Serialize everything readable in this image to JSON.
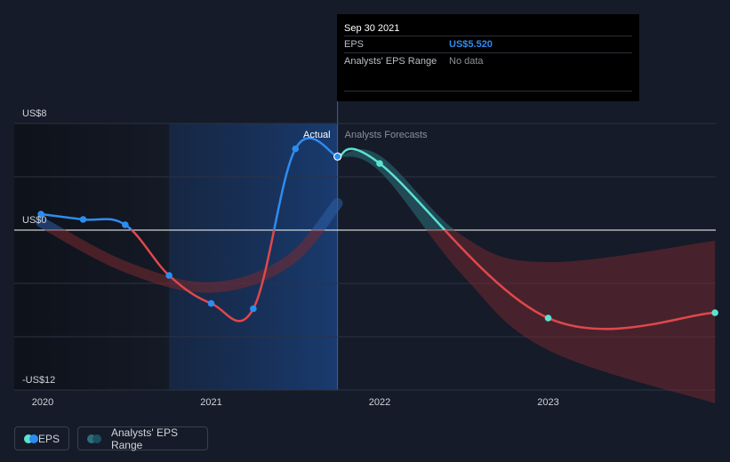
{
  "tooltip": {
    "date": "Sep 30 2021",
    "rows": [
      {
        "label": "EPS",
        "value": "US$5.520"
      },
      {
        "label": "Analysts' EPS Range",
        "value": "No data"
      }
    ]
  },
  "labels": {
    "actual": "Actual",
    "forecast": "Analysts Forecasts"
  },
  "legend": [
    {
      "label": "EPS",
      "colors": [
        "#2e8cf0",
        "#5be3d0"
      ]
    },
    {
      "label": "Analysts' EPS Range",
      "colors": [
        "#2b6f7c",
        "#1f4f5e"
      ]
    }
  ],
  "colors": {
    "background": "#151b28",
    "eps_positive": "#2e8cf0",
    "eps_negative": "#e0474c",
    "forecast_positive": "#5be3d0",
    "range_positive": "#2b6f7c",
    "range_negative": "#7a2a30",
    "highlight": "#1a3a66"
  },
  "chart_data": {
    "type": "line",
    "title": "",
    "xlabel": "",
    "ylabel": "",
    "x_ticks": [
      "2020",
      "2021",
      "2022",
      "2023"
    ],
    "y_ticks": [
      {
        "value": 8,
        "label": "US$8"
      },
      {
        "value": 0,
        "label": "US$0"
      },
      {
        "value": -12,
        "label": "-US$12"
      }
    ],
    "ylim": [
      -12,
      8
    ],
    "gridlines": [
      8,
      4,
      0,
      -4,
      -8,
      -12
    ],
    "series": [
      {
        "name": "EPS",
        "kind": "actual",
        "points": [
          {
            "x": 2019.99,
            "y": 1.2
          },
          {
            "x": 2020.24,
            "y": 0.8
          },
          {
            "x": 2020.49,
            "y": 0.4
          },
          {
            "x": 2020.75,
            "y": -3.4
          },
          {
            "x": 2021.0,
            "y": -5.5
          },
          {
            "x": 2021.25,
            "y": -5.9
          },
          {
            "x": 2021.5,
            "y": 6.1
          },
          {
            "x": 2021.75,
            "y": 5.52
          }
        ]
      },
      {
        "name": "EPS",
        "kind": "forecast",
        "points": [
          {
            "x": 2021.75,
            "y": 5.52
          },
          {
            "x": 2022.0,
            "y": 5.0
          },
          {
            "x": 2023.0,
            "y": -6.6
          },
          {
            "x": 2023.99,
            "y": -6.2
          }
        ]
      },
      {
        "name": "Analysts' EPS Range",
        "kind": "band",
        "upper": [
          {
            "x": 2021.75,
            "y": 5.52
          },
          {
            "x": 2022.0,
            "y": 5.6
          },
          {
            "x": 2022.5,
            "y": -0.5
          },
          {
            "x": 2023.0,
            "y": -2.4
          },
          {
            "x": 2023.99,
            "y": -0.8
          }
        ],
        "lower": [
          {
            "x": 2021.75,
            "y": 5.52
          },
          {
            "x": 2022.0,
            "y": 4.4
          },
          {
            "x": 2022.5,
            "y": -3.5
          },
          {
            "x": 2023.0,
            "y": -9.0
          },
          {
            "x": 2023.99,
            "y": -13.0
          }
        ]
      }
    ],
    "grid": true,
    "legend_position": "bottom-left"
  }
}
